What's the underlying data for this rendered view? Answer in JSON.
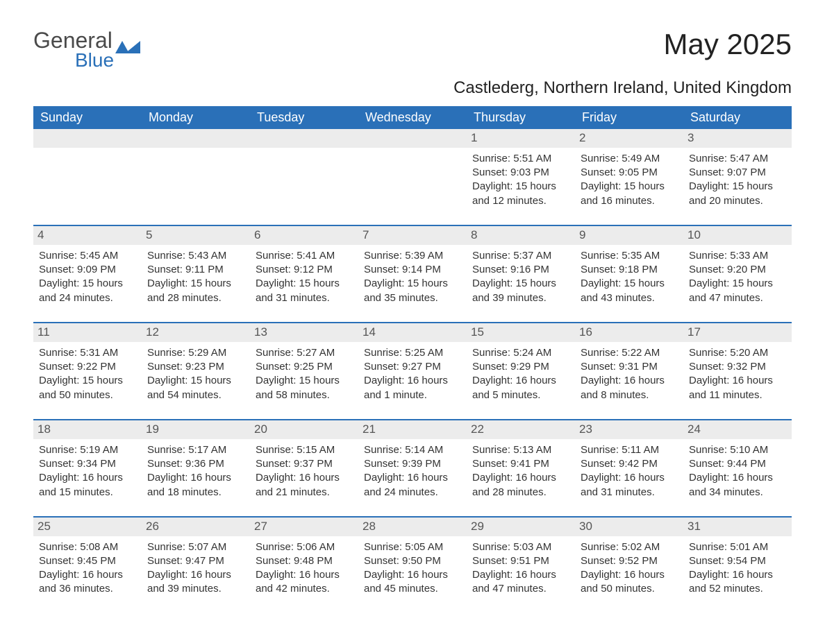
{
  "brand": {
    "part1": "General",
    "part2": "Blue"
  },
  "title": "May 2025",
  "location": "Castlederg, Northern Ireland, United Kingdom",
  "colors": {
    "header_bg": "#2a70b8",
    "header_fg": "#ffffff",
    "row_separator": "#2a70b8",
    "daynum_bg": "#ececec",
    "daynum_fg": "#555555",
    "body_text": "#333333",
    "page_bg": "#ffffff",
    "brand_gray": "#4a4a4a",
    "brand_blue": "#2a70b8"
  },
  "typography": {
    "title_fontsize_pt": 32,
    "subtitle_fontsize_pt": 18,
    "header_fontsize_pt": 14,
    "daynum_fontsize_pt": 13,
    "body_fontsize_pt": 11,
    "font_family": "Arial"
  },
  "layout": {
    "columns": 7,
    "rows": 5,
    "first_weekday": "Sunday",
    "leading_blanks": 4
  },
  "weekdays": [
    "Sunday",
    "Monday",
    "Tuesday",
    "Wednesday",
    "Thursday",
    "Friday",
    "Saturday"
  ],
  "days": [
    {
      "n": 1,
      "sunrise": "5:51 AM",
      "sunset": "9:03 PM",
      "daylight": "15 hours and 12 minutes."
    },
    {
      "n": 2,
      "sunrise": "5:49 AM",
      "sunset": "9:05 PM",
      "daylight": "15 hours and 16 minutes."
    },
    {
      "n": 3,
      "sunrise": "5:47 AM",
      "sunset": "9:07 PM",
      "daylight": "15 hours and 20 minutes."
    },
    {
      "n": 4,
      "sunrise": "5:45 AM",
      "sunset": "9:09 PM",
      "daylight": "15 hours and 24 minutes."
    },
    {
      "n": 5,
      "sunrise": "5:43 AM",
      "sunset": "9:11 PM",
      "daylight": "15 hours and 28 minutes."
    },
    {
      "n": 6,
      "sunrise": "5:41 AM",
      "sunset": "9:12 PM",
      "daylight": "15 hours and 31 minutes."
    },
    {
      "n": 7,
      "sunrise": "5:39 AM",
      "sunset": "9:14 PM",
      "daylight": "15 hours and 35 minutes."
    },
    {
      "n": 8,
      "sunrise": "5:37 AM",
      "sunset": "9:16 PM",
      "daylight": "15 hours and 39 minutes."
    },
    {
      "n": 9,
      "sunrise": "5:35 AM",
      "sunset": "9:18 PM",
      "daylight": "15 hours and 43 minutes."
    },
    {
      "n": 10,
      "sunrise": "5:33 AM",
      "sunset": "9:20 PM",
      "daylight": "15 hours and 47 minutes."
    },
    {
      "n": 11,
      "sunrise": "5:31 AM",
      "sunset": "9:22 PM",
      "daylight": "15 hours and 50 minutes."
    },
    {
      "n": 12,
      "sunrise": "5:29 AM",
      "sunset": "9:23 PM",
      "daylight": "15 hours and 54 minutes."
    },
    {
      "n": 13,
      "sunrise": "5:27 AM",
      "sunset": "9:25 PM",
      "daylight": "15 hours and 58 minutes."
    },
    {
      "n": 14,
      "sunrise": "5:25 AM",
      "sunset": "9:27 PM",
      "daylight": "16 hours and 1 minute."
    },
    {
      "n": 15,
      "sunrise": "5:24 AM",
      "sunset": "9:29 PM",
      "daylight": "16 hours and 5 minutes."
    },
    {
      "n": 16,
      "sunrise": "5:22 AM",
      "sunset": "9:31 PM",
      "daylight": "16 hours and 8 minutes."
    },
    {
      "n": 17,
      "sunrise": "5:20 AM",
      "sunset": "9:32 PM",
      "daylight": "16 hours and 11 minutes."
    },
    {
      "n": 18,
      "sunrise": "5:19 AM",
      "sunset": "9:34 PM",
      "daylight": "16 hours and 15 minutes."
    },
    {
      "n": 19,
      "sunrise": "5:17 AM",
      "sunset": "9:36 PM",
      "daylight": "16 hours and 18 minutes."
    },
    {
      "n": 20,
      "sunrise": "5:15 AM",
      "sunset": "9:37 PM",
      "daylight": "16 hours and 21 minutes."
    },
    {
      "n": 21,
      "sunrise": "5:14 AM",
      "sunset": "9:39 PM",
      "daylight": "16 hours and 24 minutes."
    },
    {
      "n": 22,
      "sunrise": "5:13 AM",
      "sunset": "9:41 PM",
      "daylight": "16 hours and 28 minutes."
    },
    {
      "n": 23,
      "sunrise": "5:11 AM",
      "sunset": "9:42 PM",
      "daylight": "16 hours and 31 minutes."
    },
    {
      "n": 24,
      "sunrise": "5:10 AM",
      "sunset": "9:44 PM",
      "daylight": "16 hours and 34 minutes."
    },
    {
      "n": 25,
      "sunrise": "5:08 AM",
      "sunset": "9:45 PM",
      "daylight": "16 hours and 36 minutes."
    },
    {
      "n": 26,
      "sunrise": "5:07 AM",
      "sunset": "9:47 PM",
      "daylight": "16 hours and 39 minutes."
    },
    {
      "n": 27,
      "sunrise": "5:06 AM",
      "sunset": "9:48 PM",
      "daylight": "16 hours and 42 minutes."
    },
    {
      "n": 28,
      "sunrise": "5:05 AM",
      "sunset": "9:50 PM",
      "daylight": "16 hours and 45 minutes."
    },
    {
      "n": 29,
      "sunrise": "5:03 AM",
      "sunset": "9:51 PM",
      "daylight": "16 hours and 47 minutes."
    },
    {
      "n": 30,
      "sunrise": "5:02 AM",
      "sunset": "9:52 PM",
      "daylight": "16 hours and 50 minutes."
    },
    {
      "n": 31,
      "sunrise": "5:01 AM",
      "sunset": "9:54 PM",
      "daylight": "16 hours and 52 minutes."
    }
  ],
  "labels": {
    "sunrise_prefix": "Sunrise: ",
    "sunset_prefix": "Sunset: ",
    "daylight_prefix": "Daylight: "
  }
}
